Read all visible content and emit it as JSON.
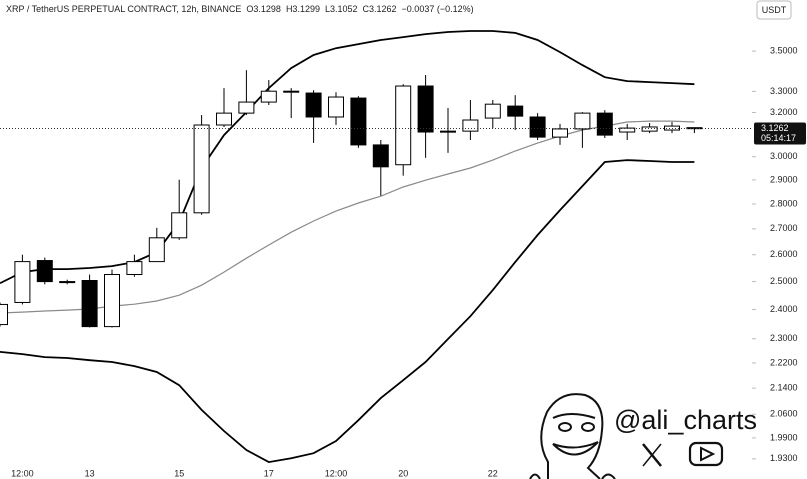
{
  "chart_data": {
    "type": "candlestick",
    "title": "XRP / TetherUS PERPETUAL CONTRACT, 12h, BINANCE",
    "ohlc_labels": [
      "O3.1298",
      "H3.1299",
      "L3.1052",
      "C3.1262"
    ],
    "change_label": "−0.0037 (−0.12%)",
    "currency": "USDT",
    "yscale": "log",
    "ylim": [
      1.91,
      3.771
    ],
    "yticks": [
      {
        "value": 1.93,
        "label": "1.9300"
      },
      {
        "value": 1.99,
        "label": "1.9900"
      },
      {
        "value": 2.06,
        "label": "2.0600"
      },
      {
        "value": 2.14,
        "label": "2.1400"
      },
      {
        "value": 2.22,
        "label": "2.2200"
      },
      {
        "value": 2.3,
        "label": "2.3000"
      },
      {
        "value": 2.4,
        "label": "2.4000"
      },
      {
        "value": 2.5,
        "label": "2.5000"
      },
      {
        "value": 2.6,
        "label": "2.6000"
      },
      {
        "value": 2.7,
        "label": "2.7000"
      },
      {
        "value": 2.8,
        "label": "2.8000"
      },
      {
        "value": 2.9,
        "label": "2.9000"
      },
      {
        "value": 3,
        "label": "3.0000"
      },
      {
        "value": 3.2,
        "label": "3.2000"
      },
      {
        "value": 3.3,
        "label": "3.3000"
      },
      {
        "value": 3.5,
        "label": "3.5000"
      }
    ],
    "categories": [
      null,
      "12:00",
      null,
      null,
      "13",
      null,
      null,
      null,
      "15",
      null,
      null,
      null,
      "17",
      null,
      null,
      "12:00",
      null,
      null,
      "20",
      null,
      null,
      null,
      "22",
      null,
      null,
      null,
      null,
      null,
      null,
      null,
      null,
      null
    ],
    "open": [
      2.348,
      2.425,
      2.578,
      2.5,
      2.504,
      2.341,
      2.526,
      2.574,
      2.665,
      2.764,
      3.142,
      3.197,
      3.249,
      3.301,
      3.292,
      3.179,
      3.268,
      3.052,
      2.965,
      3.326,
      3.114,
      3.114,
      3.174,
      3.23,
      3.179,
      3.087,
      3.124,
      3.197,
      3.11,
      3.114,
      3.119,
      3.1298
    ],
    "high": [
      2.425,
      2.6,
      2.589,
      2.507,
      2.526,
      2.544,
      2.6,
      2.704,
      2.901,
      3.188,
      3.316,
      3.404,
      3.355,
      3.316,
      3.306,
      3.296,
      3.277,
      3.074,
      3.335,
      3.38,
      3.221,
      3.259,
      3.259,
      3.282,
      3.197,
      3.147,
      3.202,
      3.211,
      3.147,
      3.151,
      3.156,
      3.1299
    ],
    "low": [
      2.341,
      2.418,
      2.49,
      2.49,
      2.338,
      2.338,
      2.518,
      2.574,
      2.657,
      2.756,
      3.133,
      3.188,
      3.235,
      3.174,
      3.061,
      3.142,
      3.039,
      2.834,
      2.918,
      2.995,
      3.017,
      3.074,
      3.128,
      3.119,
      3.074,
      3.052,
      3.039,
      3.083,
      3.074,
      3.105,
      3.105,
      3.1052
    ],
    "close": [
      2.418,
      2.574,
      2.5,
      2.5,
      2.341,
      2.526,
      2.574,
      2.665,
      2.764,
      3.142,
      3.197,
      3.249,
      3.301,
      3.3,
      3.179,
      3.273,
      3.052,
      2.956,
      3.326,
      3.11,
      3.114,
      3.165,
      3.239,
      3.183,
      3.087,
      3.124,
      3.197,
      3.096,
      3.128,
      3.133,
      3.137,
      3.1262
    ],
    "lines": [
      {
        "color": "#000000",
        "values": [
          2.494,
          2.535,
          2.546,
          2.546,
          2.55,
          2.557,
          2.572,
          2.61,
          2.727,
          2.951,
          3.096,
          3.202,
          3.316,
          3.414,
          3.48,
          3.515,
          3.536,
          3.557,
          3.572,
          3.588,
          3.599,
          3.604,
          3.604,
          3.594,
          3.557,
          3.495,
          3.429,
          3.369,
          3.35,
          3.345,
          3.34,
          3.335
        ]
      },
      {
        "color": "#8a8a8a",
        "values": [
          2.388,
          2.391,
          2.395,
          2.398,
          2.402,
          2.412,
          2.419,
          2.43,
          2.451,
          2.487,
          2.535,
          2.587,
          2.637,
          2.687,
          2.731,
          2.771,
          2.804,
          2.832,
          2.87,
          2.899,
          2.925,
          2.951,
          2.985,
          3.025,
          3.06,
          3.092,
          3.119,
          3.137,
          3.156,
          3.16,
          3.16,
          3.156
        ]
      },
      {
        "color": "#000000",
        "values": [
          2.256,
          2.249,
          2.239,
          2.236,
          2.229,
          2.223,
          2.21,
          2.191,
          2.149,
          2.073,
          2.01,
          1.955,
          1.921,
          1.932,
          1.946,
          1.981,
          2.042,
          2.109,
          2.165,
          2.223,
          2.299,
          2.377,
          2.469,
          2.572,
          2.676,
          2.775,
          2.874,
          2.977,
          2.985,
          2.981,
          2.977,
          2.977
        ]
      }
    ],
    "last_price": {
      "value": 3.1262,
      "label": "3.1262"
    },
    "countdown": "05:14:17",
    "watermark": "@ali_charts"
  }
}
